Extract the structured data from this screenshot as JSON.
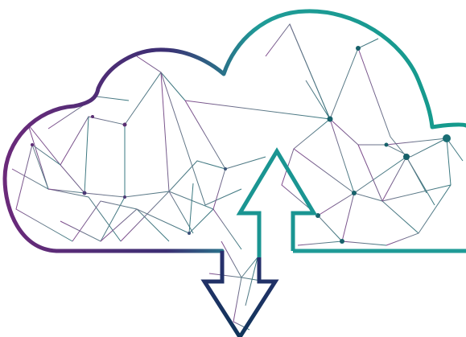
{
  "image": {
    "subject": "cloud-upload-download-network-illustration",
    "colors": {
      "purple": "#6b2a7a",
      "navy": "#2a2f6e",
      "teal": "#1f9b97",
      "dark_teal": "#17616a",
      "mesh_gray": "#7b8b98",
      "background": "#ffffff"
    }
  }
}
